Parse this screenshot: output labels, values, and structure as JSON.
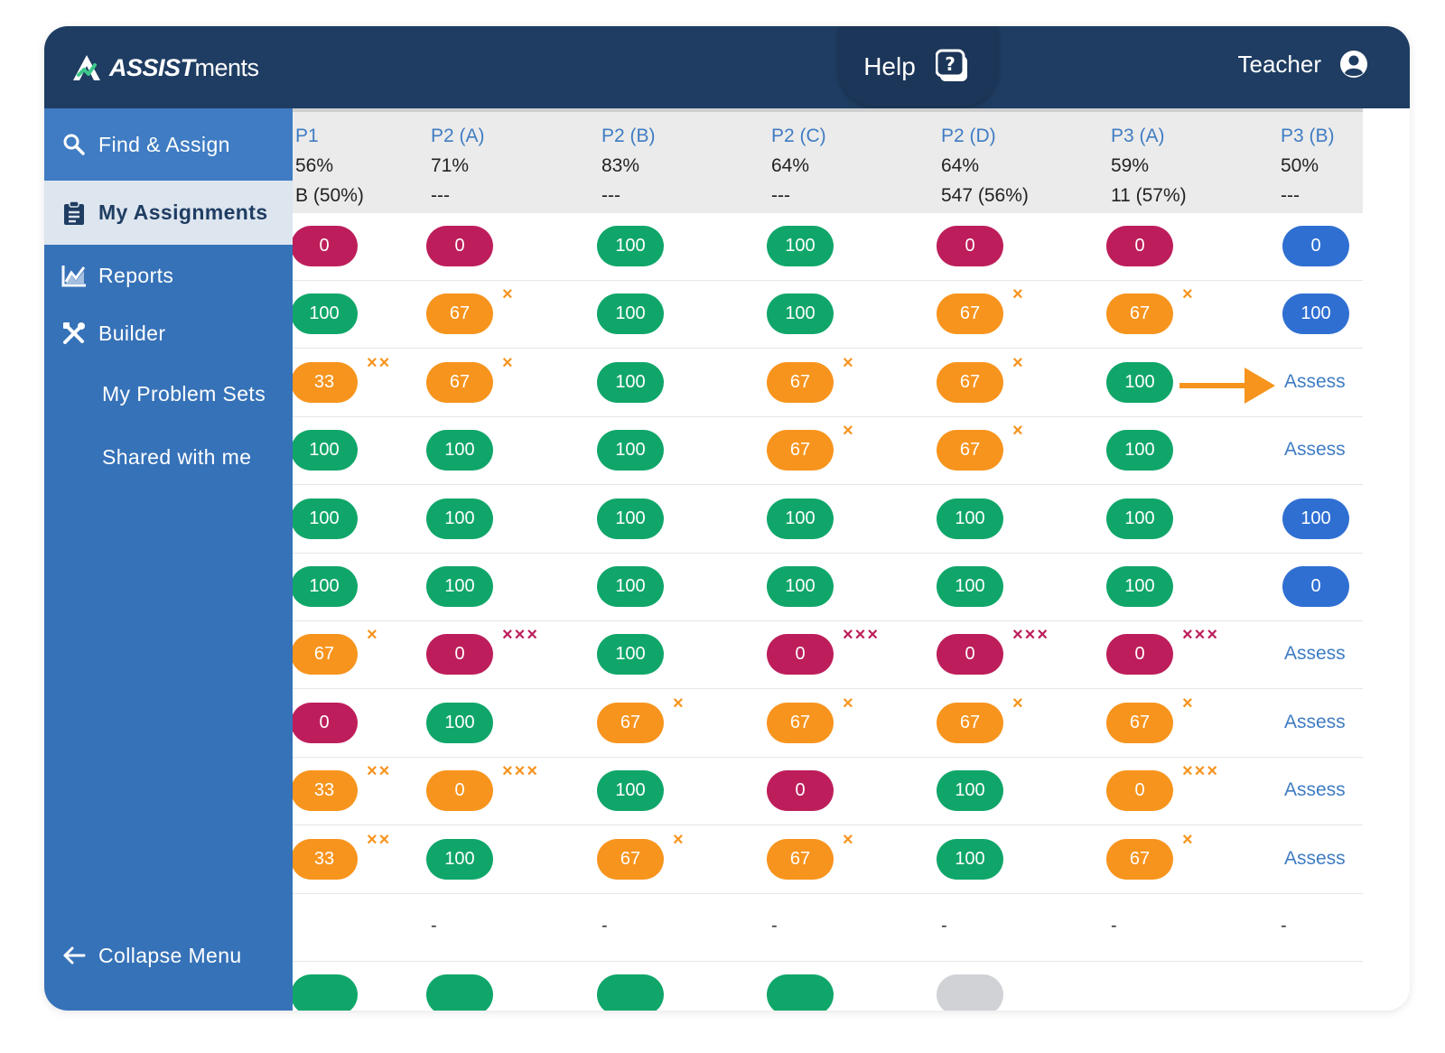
{
  "brand": {
    "name_bold": "ASSIST",
    "name_rest": "ments"
  },
  "header": {
    "help_label": "Help",
    "user_label": "Teacher"
  },
  "sidebar": {
    "items": [
      {
        "label": "Find & Assign",
        "icon": "search-icon"
      },
      {
        "label": "My Assignments",
        "icon": "clipboard-icon"
      },
      {
        "label": "Reports",
        "icon": "chart-icon"
      },
      {
        "label": "Builder",
        "icon": "tools-icon"
      },
      {
        "label": "My Problem Sets"
      },
      {
        "label": "Shared with me"
      }
    ],
    "collapse_label": "Collapse Menu"
  },
  "columns": [
    {
      "name": "P1",
      "pct": "56%",
      "sub": "B (50%)"
    },
    {
      "name": "P2 (A)",
      "pct": "71%",
      "sub": "---"
    },
    {
      "name": "P2 (B)",
      "pct": "83%",
      "sub": "---"
    },
    {
      "name": "P2 (C)",
      "pct": "64%",
      "sub": "---"
    },
    {
      "name": "P2 (D)",
      "pct": "64%",
      "sub": "547 (56%)"
    },
    {
      "name": "P3 (A)",
      "pct": "59%",
      "sub": "11 (57%)"
    },
    {
      "name": "P3 (B)",
      "pct": "50%",
      "sub": "---"
    }
  ],
  "colors": {
    "green": "#10a66a",
    "red": "#bd1e5b",
    "orange": "#f7941d",
    "blue": "#2f6fd2",
    "link": "#3f7cc3",
    "header_bg": "#1f3d62",
    "sidebar_bg": "#3672b8"
  },
  "rows": [
    [
      {
        "t": "pill",
        "v": "0",
        "c": "red"
      },
      {
        "t": "pill",
        "v": "0",
        "c": "red"
      },
      {
        "t": "pill",
        "v": "100",
        "c": "green"
      },
      {
        "t": "pill",
        "v": "100",
        "c": "green"
      },
      {
        "t": "pill",
        "v": "0",
        "c": "red"
      },
      {
        "t": "pill",
        "v": "0",
        "c": "red"
      },
      {
        "t": "pill",
        "v": "0",
        "c": "blue"
      }
    ],
    [
      {
        "t": "pill",
        "v": "100",
        "c": "green"
      },
      {
        "t": "pill",
        "v": "67",
        "c": "orange",
        "m": "×"
      },
      {
        "t": "pill",
        "v": "100",
        "c": "green"
      },
      {
        "t": "pill",
        "v": "100",
        "c": "green"
      },
      {
        "t": "pill",
        "v": "67",
        "c": "orange",
        "m": "×"
      },
      {
        "t": "pill",
        "v": "67",
        "c": "orange",
        "m": "×"
      },
      {
        "t": "pill",
        "v": "100",
        "c": "blue"
      }
    ],
    [
      {
        "t": "pill",
        "v": "33",
        "c": "orange",
        "m": "××"
      },
      {
        "t": "pill",
        "v": "67",
        "c": "orange",
        "m": "×"
      },
      {
        "t": "pill",
        "v": "100",
        "c": "green"
      },
      {
        "t": "pill",
        "v": "67",
        "c": "orange",
        "m": "×"
      },
      {
        "t": "pill",
        "v": "67",
        "c": "orange",
        "m": "×"
      },
      {
        "t": "pill",
        "v": "100",
        "c": "green"
      },
      {
        "t": "assess",
        "v": "Assess"
      }
    ],
    [
      {
        "t": "pill",
        "v": "100",
        "c": "green"
      },
      {
        "t": "pill",
        "v": "100",
        "c": "green"
      },
      {
        "t": "pill",
        "v": "100",
        "c": "green"
      },
      {
        "t": "pill",
        "v": "67",
        "c": "orange",
        "m": "×"
      },
      {
        "t": "pill",
        "v": "67",
        "c": "orange",
        "m": "×"
      },
      {
        "t": "pill",
        "v": "100",
        "c": "green"
      },
      {
        "t": "assess",
        "v": "Assess"
      }
    ],
    [
      {
        "t": "pill",
        "v": "100",
        "c": "green"
      },
      {
        "t": "pill",
        "v": "100",
        "c": "green"
      },
      {
        "t": "pill",
        "v": "100",
        "c": "green"
      },
      {
        "t": "pill",
        "v": "100",
        "c": "green"
      },
      {
        "t": "pill",
        "v": "100",
        "c": "green"
      },
      {
        "t": "pill",
        "v": "100",
        "c": "green"
      },
      {
        "t": "pill",
        "v": "100",
        "c": "blue"
      }
    ],
    [
      {
        "t": "pill",
        "v": "100",
        "c": "green"
      },
      {
        "t": "pill",
        "v": "100",
        "c": "green"
      },
      {
        "t": "pill",
        "v": "100",
        "c": "green"
      },
      {
        "t": "pill",
        "v": "100",
        "c": "green"
      },
      {
        "t": "pill",
        "v": "100",
        "c": "green"
      },
      {
        "t": "pill",
        "v": "100",
        "c": "green"
      },
      {
        "t": "pill",
        "v": "0",
        "c": "blue"
      }
    ],
    [
      {
        "t": "pill",
        "v": "67",
        "c": "orange",
        "m": "×"
      },
      {
        "t": "pill",
        "v": "0",
        "c": "red",
        "m": "×××"
      },
      {
        "t": "pill",
        "v": "100",
        "c": "green"
      },
      {
        "t": "pill",
        "v": "0",
        "c": "red",
        "m": "×××"
      },
      {
        "t": "pill",
        "v": "0",
        "c": "red",
        "m": "×××"
      },
      {
        "t": "pill",
        "v": "0",
        "c": "red",
        "m": "×××"
      },
      {
        "t": "assess",
        "v": "Assess"
      }
    ],
    [
      {
        "t": "pill",
        "v": "0",
        "c": "red"
      },
      {
        "t": "pill",
        "v": "100",
        "c": "green"
      },
      {
        "t": "pill",
        "v": "67",
        "c": "orange",
        "m": "×"
      },
      {
        "t": "pill",
        "v": "67",
        "c": "orange",
        "m": "×"
      },
      {
        "t": "pill",
        "v": "67",
        "c": "orange",
        "m": "×"
      },
      {
        "t": "pill",
        "v": "67",
        "c": "orange",
        "m": "×"
      },
      {
        "t": "assess",
        "v": "Assess"
      }
    ],
    [
      {
        "t": "pill",
        "v": "33",
        "c": "orange",
        "m": "××"
      },
      {
        "t": "pill",
        "v": "0",
        "c": "orange",
        "m": "×××"
      },
      {
        "t": "pill",
        "v": "100",
        "c": "green"
      },
      {
        "t": "pill",
        "v": "0",
        "c": "red"
      },
      {
        "t": "pill",
        "v": "100",
        "c": "green"
      },
      {
        "t": "pill",
        "v": "0",
        "c": "orange",
        "m": "×××"
      },
      {
        "t": "assess",
        "v": "Assess"
      }
    ],
    [
      {
        "t": "pill",
        "v": "33",
        "c": "orange",
        "m": "××"
      },
      {
        "t": "pill",
        "v": "100",
        "c": "green"
      },
      {
        "t": "pill",
        "v": "67",
        "c": "orange",
        "m": "×"
      },
      {
        "t": "pill",
        "v": "67",
        "c": "orange",
        "m": "×"
      },
      {
        "t": "pill",
        "v": "100",
        "c": "green"
      },
      {
        "t": "pill",
        "v": "67",
        "c": "orange",
        "m": "×"
      },
      {
        "t": "assess",
        "v": "Assess"
      }
    ],
    [
      {
        "t": "empty"
      },
      {
        "t": "dash",
        "v": "-"
      },
      {
        "t": "dash",
        "v": "-"
      },
      {
        "t": "dash",
        "v": "-"
      },
      {
        "t": "dash",
        "v": "-"
      },
      {
        "t": "dash",
        "v": "-"
      },
      {
        "t": "dash",
        "v": "-"
      }
    ],
    [
      {
        "t": "pill",
        "v": "",
        "c": "green"
      },
      {
        "t": "pill",
        "v": "",
        "c": "green"
      },
      {
        "t": "pill",
        "v": "",
        "c": "green"
      },
      {
        "t": "pill",
        "v": "",
        "c": "green"
      },
      {
        "t": "pill",
        "v": "",
        "c": "gray"
      },
      {
        "t": "empty"
      },
      {
        "t": "empty"
      }
    ]
  ]
}
